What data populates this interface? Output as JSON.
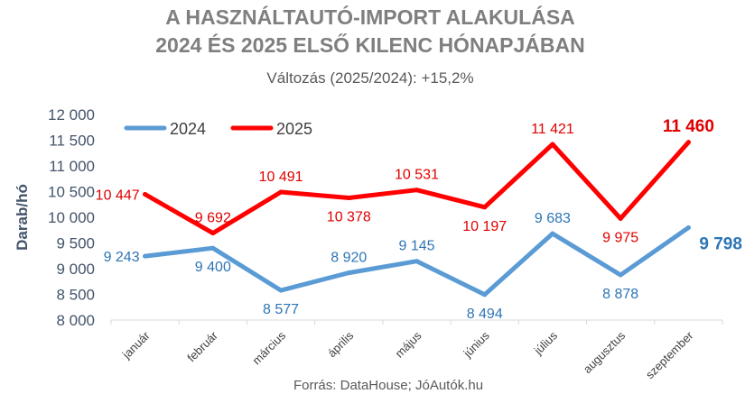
{
  "chart_data": {
    "type": "line",
    "title_lines": [
      "A HASZNÁLTAUTÓ-IMPORT ALAKULÁSA",
      "2024 ÉS 2025 ELSŐ KILENC HÓNAPJÁBAN"
    ],
    "subtitle": "Változás (2025/2024): +15,2%",
    "ylabel": "Darab/hó",
    "xlabel": "",
    "source": "Forrás: DataHouse; JóAutók.hu",
    "categories": [
      "január",
      "február",
      "március",
      "április",
      "május",
      "június",
      "július",
      "augusztus",
      "szeptember"
    ],
    "ylim": [
      8000,
      12000
    ],
    "y_ticks": [
      {
        "value": 8000,
        "label": "8 000"
      },
      {
        "value": 8500,
        "label": "8 500"
      },
      {
        "value": 9000,
        "label": "9 000"
      },
      {
        "value": 9500,
        "label": "9 500"
      },
      {
        "value": 10000,
        "label": "10 000"
      },
      {
        "value": 10500,
        "label": "10 500"
      },
      {
        "value": 11000,
        "label": "11 000"
      },
      {
        "value": 11500,
        "label": "11 500"
      },
      {
        "value": 12000,
        "label": "12 000"
      }
    ],
    "grid": false,
    "legend_position": "top-left",
    "series": [
      {
        "name": "2024",
        "color": "#5b9bd5",
        "label_color": "#2e75b6",
        "values": [
          9243,
          9400,
          8577,
          8920,
          9145,
          8494,
          9683,
          8878,
          9798
        ],
        "labels": [
          "9 243",
          "9 400",
          "8 577",
          "8 920",
          "9 145",
          "8 494",
          "9 683",
          "8 878",
          "9 798"
        ],
        "label_positions": [
          "left",
          "below",
          "below",
          "above",
          "above",
          "below",
          "above",
          "below",
          "right"
        ]
      },
      {
        "name": "2025",
        "color": "#ff0000",
        "label_color": "#e00000",
        "values": [
          10447,
          9692,
          10491,
          10378,
          10531,
          10197,
          11421,
          9975,
          11460
        ],
        "labels": [
          "10 447",
          "9 692",
          "10 491",
          "10 378",
          "10 531",
          "10 197",
          "11 421",
          "9 975",
          "11 460"
        ],
        "label_positions": [
          "left",
          "above",
          "above",
          "below",
          "above",
          "below",
          "above",
          "below",
          "above"
        ]
      }
    ]
  }
}
